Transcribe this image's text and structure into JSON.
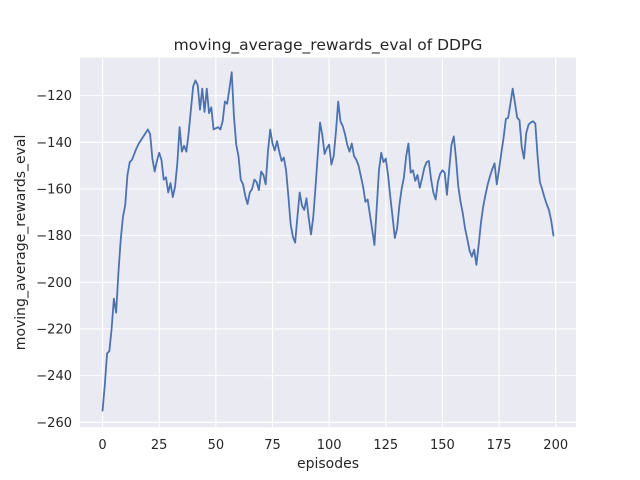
{
  "chart_data": {
    "type": "line",
    "title": "moving_average_rewards_eval of DDPG",
    "xlabel": "episodes",
    "ylabel": "moving_average_rewards_eval",
    "x": "episode index 0..199, step 1",
    "x_ticks": [
      0,
      25,
      50,
      75,
      100,
      125,
      150,
      175,
      200
    ],
    "y_ticks": [
      -120,
      -140,
      -160,
      -180,
      -200,
      -220,
      -240,
      -260
    ],
    "xlim": [
      -9.95,
      208.95
    ],
    "ylim": [
      -262.1,
      -103.7
    ],
    "grid": true,
    "legend_position": "none",
    "style": "seaborn-darkgrid",
    "line_color": "#4c72b0",
    "plot_background_color": "#eaeaf2",
    "grid_color": "#ffffff",
    "text_color": "#262626",
    "values": [
      -255,
      -244,
      -230.5,
      -229.5,
      -220,
      -207,
      -213,
      -196,
      -182,
      -172,
      -167,
      -154,
      -148.5,
      -147.5,
      -145,
      -142.5,
      -140.5,
      -139,
      -137.5,
      -136,
      -134.5,
      -136.5,
      -147,
      -152.5,
      -148,
      -144.5,
      -147.5,
      -156,
      -155,
      -161.5,
      -157.5,
      -163.5,
      -159,
      -149,
      -133.5,
      -144,
      -141.5,
      -144,
      -136,
      -126,
      -116,
      -113.5,
      -115.5,
      -126,
      -117,
      -127,
      -117,
      -127.5,
      -125,
      -134.5,
      -134,
      -133.5,
      -134.5,
      -131,
      -122.5,
      -123.5,
      -117,
      -110,
      -129,
      -141,
      -146,
      -156,
      -158,
      -163,
      -166.5,
      -161.5,
      -160,
      -156,
      -157,
      -160.5,
      -152.5,
      -154,
      -158,
      -144,
      -134.5,
      -140.5,
      -143.5,
      -139.5,
      -144,
      -148,
      -146.5,
      -152,
      -163,
      -175,
      -180.5,
      -183,
      -172,
      -161.5,
      -167,
      -169,
      -164,
      -172.5,
      -179.5,
      -172,
      -159,
      -145,
      -131.5,
      -137,
      -145,
      -142.5,
      -141,
      -149.5,
      -146,
      -135.5,
      -122.5,
      -131,
      -133,
      -136.5,
      -141,
      -144,
      -140.5,
      -146,
      -147.5,
      -150,
      -154.5,
      -159,
      -165.5,
      -164.5,
      -171,
      -177.5,
      -184,
      -168,
      -152,
      -144.5,
      -148.5,
      -147,
      -154,
      -163.5,
      -172,
      -181,
      -177,
      -167,
      -160,
      -155,
      -146,
      -140.5,
      -153,
      -152,
      -156.5,
      -154,
      -159.5,
      -155.5,
      -151,
      -148.5,
      -148,
      -156,
      -161.5,
      -164.5,
      -157,
      -153.5,
      -152,
      -153,
      -162.5,
      -151.5,
      -141,
      -137.5,
      -147,
      -159,
      -165.5,
      -170.5,
      -177,
      -181.5,
      -186.5,
      -189,
      -186,
      -192.5,
      -184,
      -174.5,
      -167.5,
      -162.5,
      -158,
      -154.5,
      -151.5,
      -149,
      -158,
      -151.5,
      -144.5,
      -138,
      -130,
      -129.5,
      -123.5,
      -117,
      -123,
      -129.5,
      -130.5,
      -142,
      -147,
      -136,
      -132.5,
      -131.5,
      -131,
      -132,
      -146,
      -157,
      -160,
      -163.5,
      -166.5,
      -169,
      -173.5,
      -180
    ]
  }
}
